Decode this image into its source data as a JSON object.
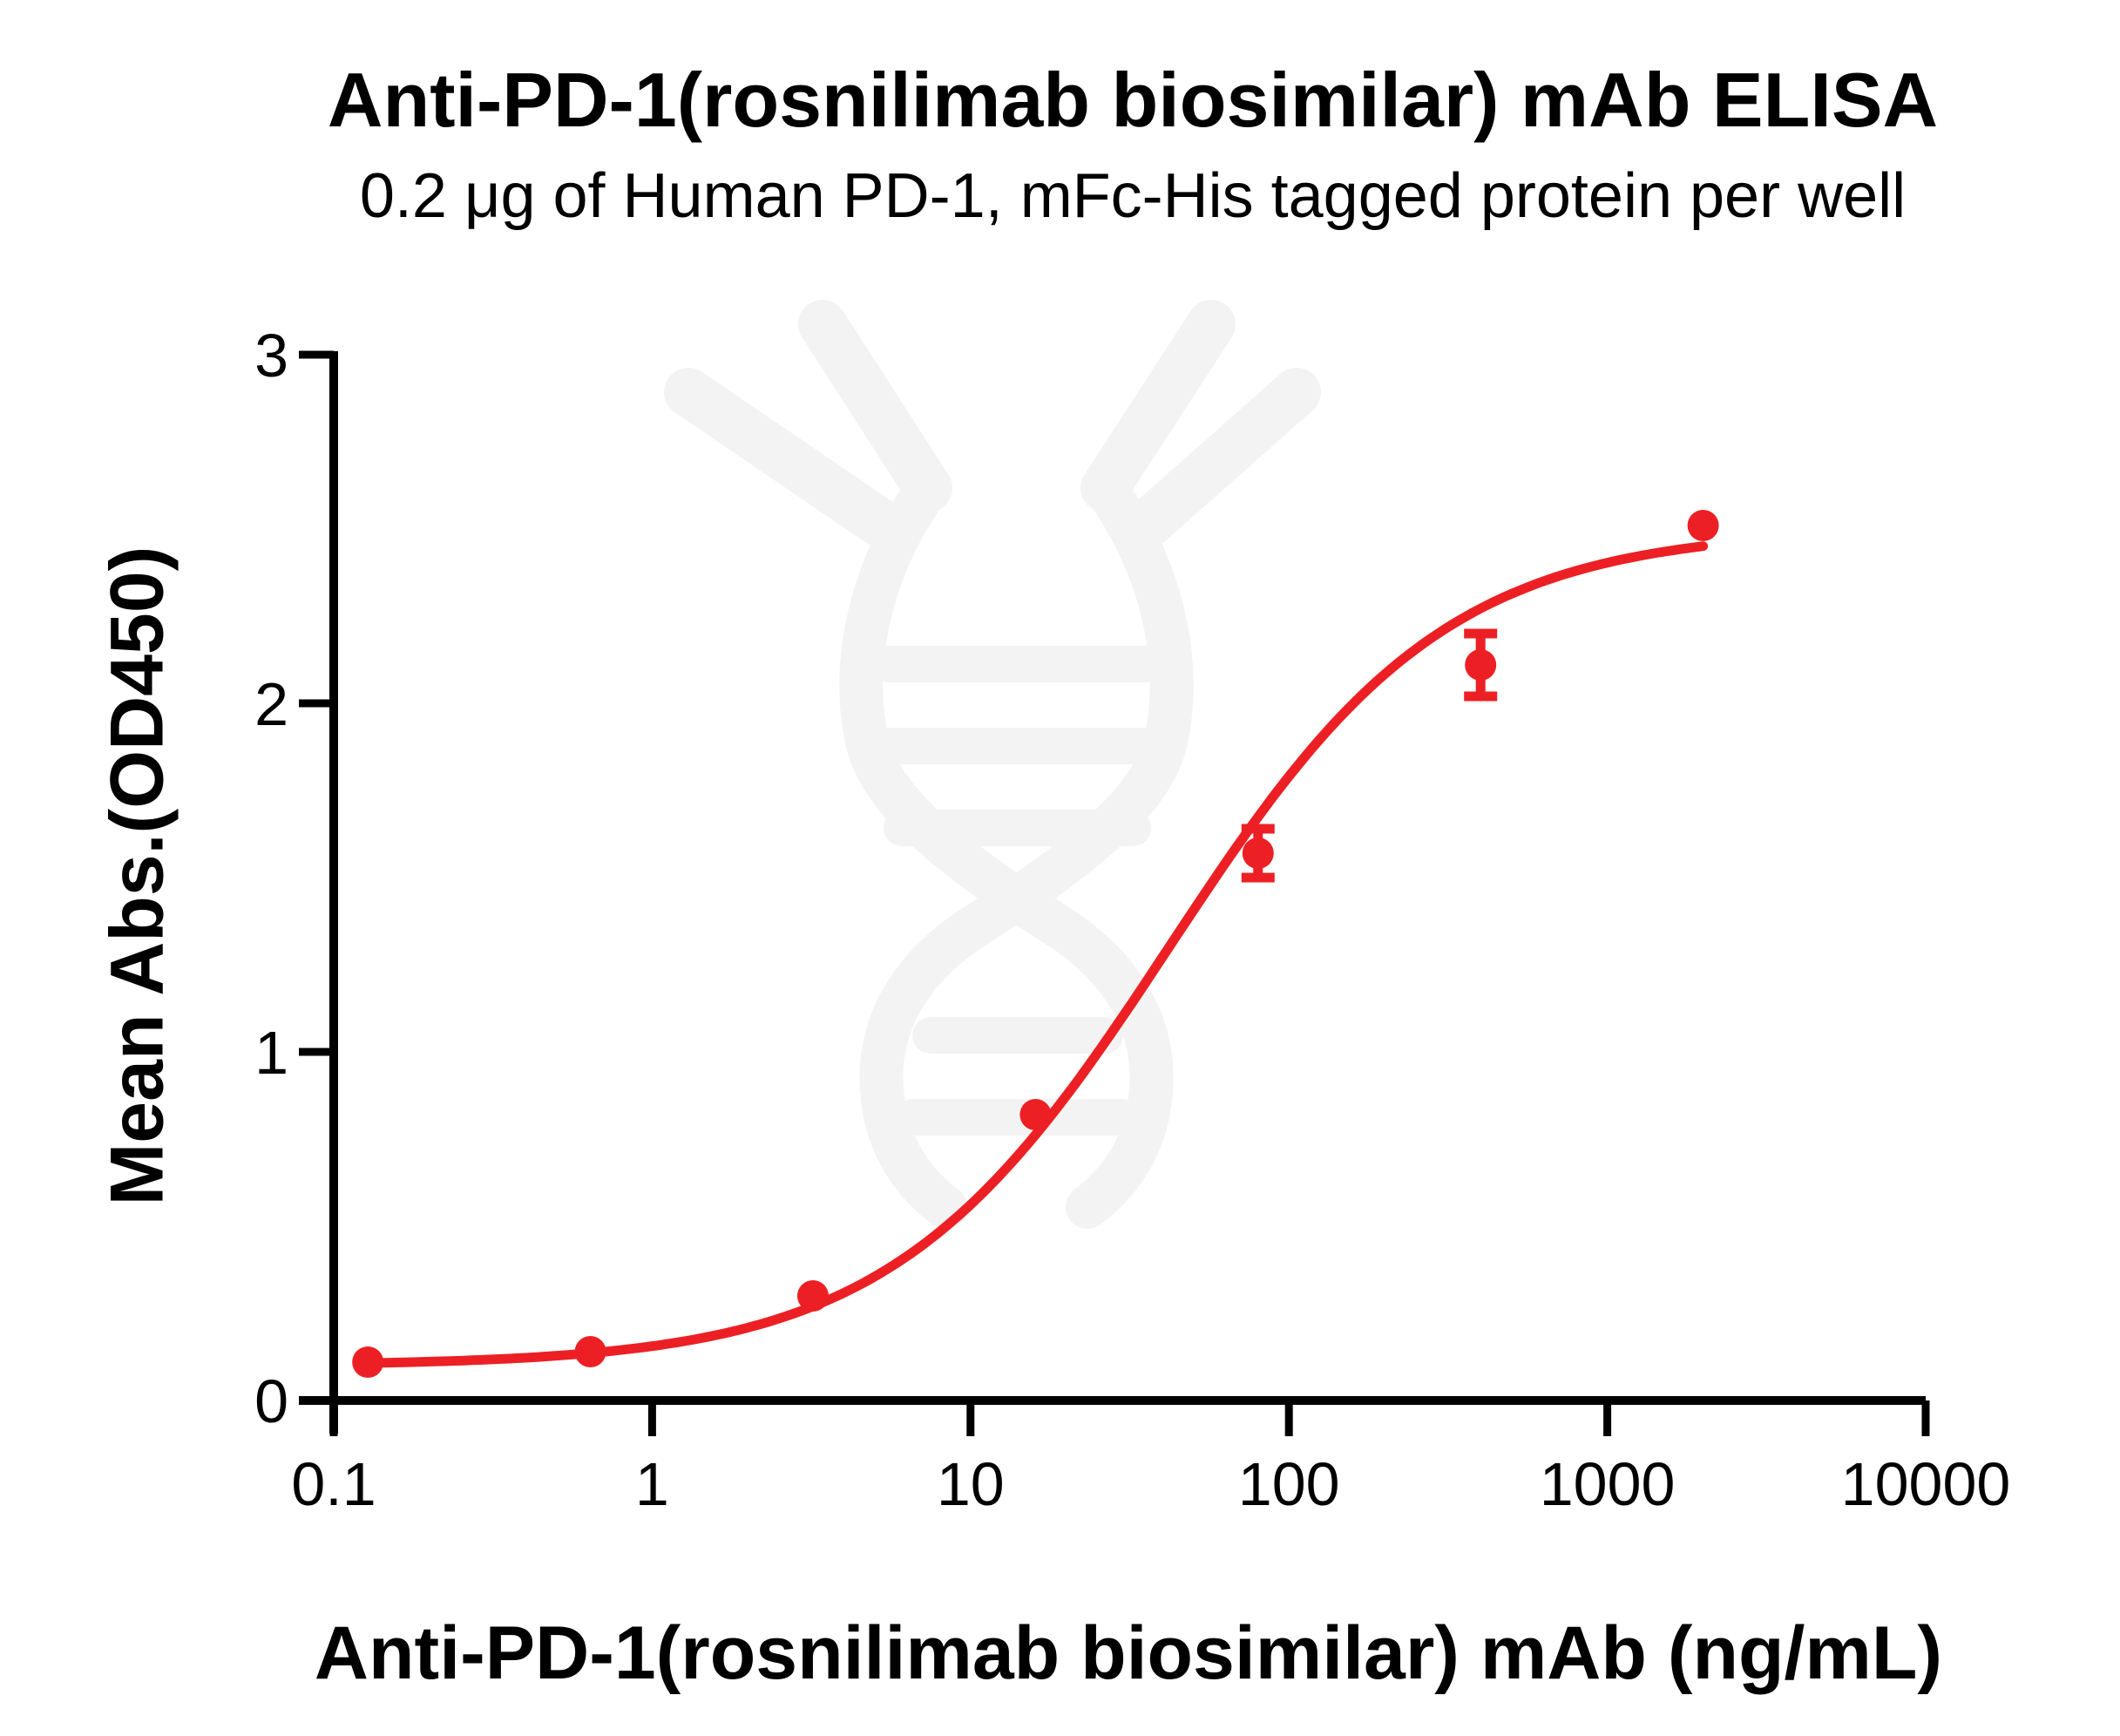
{
  "figure": {
    "title": "Anti-PD-1(rosnilimab biosimilar) mAb ELISA",
    "subtitle": "0.2 μg of Human PD-1, mFc-His tagged protein per well"
  },
  "chart_data": {
    "type": "scatter",
    "title": "Anti-PD-1(rosnilimab biosimilar) mAb ELISA",
    "subtitle": "0.2 μg of Human PD-1, mFc-His tagged protein per well",
    "xlabel": "Anti-PD-1(rosnilimab biosimilar) mAb (ng/mL)",
    "ylabel": "Mean Abs.(OD450)",
    "x_scale": "log10",
    "xlim": [
      0.1,
      10000
    ],
    "ylim": [
      0,
      3
    ],
    "x_ticks": [
      0.1,
      1,
      10,
      100,
      1000,
      10000
    ],
    "x_tick_labels": [
      "0.1",
      "1",
      "10",
      "100",
      "1000",
      "10000"
    ],
    "y_ticks": [
      0,
      1,
      2,
      3
    ],
    "y_tick_labels": [
      "0",
      "1",
      "2",
      "3"
    ],
    "grid": false,
    "legend": "none",
    "series": [
      {
        "marker": "circle",
        "color": "#EC2024",
        "x": [
          0.128,
          0.64,
          3.2,
          16,
          80,
          400,
          2000
        ],
        "y": [
          0.11,
          0.14,
          0.3,
          0.82,
          1.57,
          2.11,
          2.51
        ],
        "y_err": [
          null,
          null,
          null,
          null,
          0.07,
          0.09,
          null
        ]
      }
    ],
    "fit_curve": {
      "model": "4PL sigmoid",
      "bottom": 0.1,
      "top": 2.5,
      "ec50": 42,
      "hill": 1.0,
      "x_start": 0.128,
      "x_end": 2000,
      "color": "#EC2024"
    }
  },
  "watermark": {
    "description": "antibody-DNA-helix logo",
    "color": "#F3F3F3"
  },
  "colors": {
    "series_red": "#EC2024",
    "axis_black": "#000000",
    "background": "#FFFFFF"
  }
}
